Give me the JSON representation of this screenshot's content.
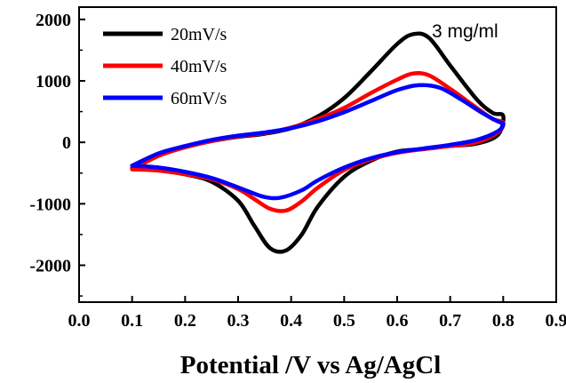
{
  "chart_data": {
    "type": "line",
    "title": "",
    "xlabel": "Potential /V vs Ag/AgCl",
    "ylabel": "",
    "xlim": [
      0.0,
      0.9
    ],
    "ylim": [
      -2600,
      2200
    ],
    "xticks": [
      "0.0",
      "0.1",
      "0.2",
      "0.3",
      "0.4",
      "0.5",
      "0.6",
      "0.7",
      "0.8",
      "0.9"
    ],
    "xtick_values": [
      0.0,
      0.1,
      0.2,
      0.3,
      0.4,
      0.5,
      0.6,
      0.7,
      0.8,
      0.9
    ],
    "yticks": [
      "2000",
      "1000",
      "0",
      "-1000",
      "-2000"
    ],
    "ytick_values": [
      2000,
      1000,
      0,
      -1000,
      -2000
    ],
    "grid": false,
    "legend_position": "top-left",
    "annotation": "3 mg/ml",
    "series": [
      {
        "name": "20mV/s",
        "color": "#000000",
        "anodic": [
          [
            0.1,
            -420
          ],
          [
            0.15,
            -200
          ],
          [
            0.2,
            -80
          ],
          [
            0.25,
            20
          ],
          [
            0.3,
            90
          ],
          [
            0.35,
            140
          ],
          [
            0.4,
            230
          ],
          [
            0.45,
            420
          ],
          [
            0.5,
            720
          ],
          [
            0.55,
            1150
          ],
          [
            0.6,
            1600
          ],
          [
            0.63,
            1760
          ],
          [
            0.66,
            1700
          ],
          [
            0.7,
            1250
          ],
          [
            0.75,
            700
          ],
          [
            0.78,
            480
          ],
          [
            0.8,
            430
          ]
        ],
        "cathodic": [
          [
            0.8,
            430
          ],
          [
            0.79,
            120
          ],
          [
            0.75,
            -20
          ],
          [
            0.7,
            -60
          ],
          [
            0.65,
            -110
          ],
          [
            0.6,
            -150
          ],
          [
            0.55,
            -300
          ],
          [
            0.5,
            -560
          ],
          [
            0.45,
            -1050
          ],
          [
            0.42,
            -1500
          ],
          [
            0.39,
            -1760
          ],
          [
            0.36,
            -1720
          ],
          [
            0.33,
            -1350
          ],
          [
            0.3,
            -950
          ],
          [
            0.25,
            -640
          ],
          [
            0.2,
            -520
          ],
          [
            0.15,
            -440
          ],
          [
            0.1,
            -420
          ]
        ]
      },
      {
        "name": "40mV/s",
        "color": "#ff0000",
        "anodic": [
          [
            0.1,
            -440
          ],
          [
            0.15,
            -220
          ],
          [
            0.2,
            -80
          ],
          [
            0.25,
            20
          ],
          [
            0.3,
            100
          ],
          [
            0.35,
            150
          ],
          [
            0.4,
            240
          ],
          [
            0.45,
            380
          ],
          [
            0.5,
            560
          ],
          [
            0.55,
            800
          ],
          [
            0.6,
            1020
          ],
          [
            0.63,
            1120
          ],
          [
            0.66,
            1090
          ],
          [
            0.7,
            870
          ],
          [
            0.75,
            560
          ],
          [
            0.78,
            380
          ],
          [
            0.8,
            320
          ]
        ],
        "cathodic": [
          [
            0.8,
            320
          ],
          [
            0.79,
            160
          ],
          [
            0.75,
            0
          ],
          [
            0.7,
            -60
          ],
          [
            0.65,
            -110
          ],
          [
            0.6,
            -170
          ],
          [
            0.55,
            -280
          ],
          [
            0.5,
            -450
          ],
          [
            0.45,
            -740
          ],
          [
            0.42,
            -960
          ],
          [
            0.39,
            -1110
          ],
          [
            0.36,
            -1080
          ],
          [
            0.33,
            -920
          ],
          [
            0.3,
            -760
          ],
          [
            0.25,
            -600
          ],
          [
            0.2,
            -520
          ],
          [
            0.15,
            -460
          ],
          [
            0.1,
            -440
          ]
        ]
      },
      {
        "name": "60mV/s",
        "color": "#0000ff",
        "anodic": [
          [
            0.1,
            -380
          ],
          [
            0.15,
            -180
          ],
          [
            0.2,
            -60
          ],
          [
            0.25,
            40
          ],
          [
            0.3,
            110
          ],
          [
            0.35,
            160
          ],
          [
            0.4,
            230
          ],
          [
            0.45,
            340
          ],
          [
            0.5,
            490
          ],
          [
            0.55,
            670
          ],
          [
            0.6,
            850
          ],
          [
            0.64,
            930
          ],
          [
            0.68,
            890
          ],
          [
            0.72,
            700
          ],
          [
            0.76,
            480
          ],
          [
            0.79,
            340
          ],
          [
            0.8,
            300
          ]
        ],
        "cathodic": [
          [
            0.8,
            300
          ],
          [
            0.79,
            180
          ],
          [
            0.75,
            40
          ],
          [
            0.7,
            -40
          ],
          [
            0.65,
            -100
          ],
          [
            0.6,
            -160
          ],
          [
            0.55,
            -260
          ],
          [
            0.5,
            -410
          ],
          [
            0.45,
            -620
          ],
          [
            0.42,
            -780
          ],
          [
            0.38,
            -900
          ],
          [
            0.35,
            -890
          ],
          [
            0.32,
            -800
          ],
          [
            0.29,
            -700
          ],
          [
            0.25,
            -580
          ],
          [
            0.2,
            -480
          ],
          [
            0.15,
            -410
          ],
          [
            0.1,
            -380
          ]
        ]
      }
    ]
  }
}
